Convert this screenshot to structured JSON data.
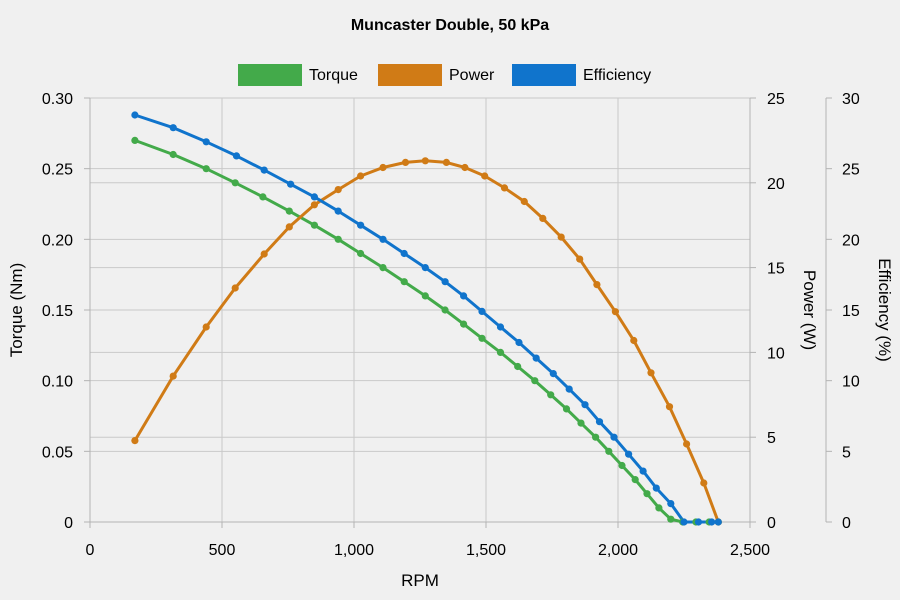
{
  "chart_data": {
    "type": "line",
    "title": "Muncaster Double, 50 kPa",
    "xlabel": "RPM",
    "xlim": [
      0,
      2500
    ],
    "x_ticks": [
      0,
      500,
      1000,
      1500,
      2000,
      2500
    ],
    "x_tick_labels": [
      "0",
      "500",
      "1,000",
      "1,500",
      "2,000",
      "2,500"
    ],
    "grid": true,
    "legend_position": "top-center",
    "axes": [
      {
        "id": "torque",
        "label": "Torque (Nm)",
        "side": "left",
        "range": [
          0,
          0.3
        ],
        "ticks": [
          0,
          0.05,
          0.1,
          0.15,
          0.2,
          0.25,
          0.3
        ],
        "tick_labels": [
          "0",
          "0.05",
          "0.10",
          "0.15",
          "0.20",
          "0.25",
          "0.30"
        ]
      },
      {
        "id": "power",
        "label": "Power (W)",
        "side": "right",
        "range": [
          0,
          25
        ],
        "ticks": [
          0,
          5,
          10,
          15,
          20,
          25
        ],
        "tick_labels": [
          "0",
          "5",
          "10",
          "15",
          "20",
          "25"
        ]
      },
      {
        "id": "efficiency",
        "label": "Efficiency (%)",
        "side": "right-outer",
        "range": [
          0,
          30
        ],
        "ticks": [
          0,
          5,
          10,
          15,
          20,
          25,
          30
        ],
        "tick_labels": [
          "0",
          "5",
          "10",
          "15",
          "20",
          "25",
          "30"
        ]
      }
    ],
    "series": [
      {
        "name": "Torque",
        "axis": "torque",
        "color": "#43aa4a",
        "x": [
          170,
          315,
          440,
          550,
          655,
          755,
          850,
          940,
          1025,
          1110,
          1190,
          1270,
          1345,
          1415,
          1485,
          1555,
          1620,
          1685,
          1745,
          1805,
          1860,
          1915,
          1965,
          2015,
          2065,
          2110,
          2155,
          2200,
          2245,
          2295,
          2345,
          2380
        ],
        "y": [
          0.27,
          0.26,
          0.25,
          0.24,
          0.23,
          0.22,
          0.21,
          0.2,
          0.19,
          0.18,
          0.17,
          0.16,
          0.15,
          0.14,
          0.13,
          0.12,
          0.11,
          0.1,
          0.09,
          0.08,
          0.07,
          0.06,
          0.05,
          0.04,
          0.03,
          0.02,
          0.01,
          0.002,
          0.0,
          0.0,
          0.0,
          0.0
        ]
      },
      {
        "name": "Power",
        "axis": "power",
        "color": "#d07b16",
        "x": [
          170,
          315,
          440,
          550,
          660,
          755,
          850,
          940,
          1025,
          1110,
          1195,
          1270,
          1350,
          1420,
          1495,
          1570,
          1645,
          1715,
          1785,
          1855,
          1920,
          1990,
          2060,
          2125,
          2195,
          2260,
          2325,
          2380
        ],
        "y": [
          4.8,
          8.6,
          11.5,
          13.8,
          15.8,
          17.4,
          18.7,
          19.6,
          20.4,
          20.9,
          21.2,
          21.3,
          21.2,
          20.9,
          20.4,
          19.7,
          18.9,
          17.9,
          16.8,
          15.5,
          14.0,
          12.4,
          10.7,
          8.8,
          6.8,
          4.6,
          2.3,
          0.0
        ]
      },
      {
        "name": "Efficiency",
        "axis": "efficiency",
        "color": "#1074cc",
        "x": [
          170,
          315,
          440,
          555,
          660,
          760,
          850,
          940,
          1025,
          1110,
          1190,
          1270,
          1345,
          1415,
          1485,
          1555,
          1625,
          1690,
          1755,
          1815,
          1875,
          1930,
          1985,
          2040,
          2095,
          2145,
          2200,
          2250,
          2305,
          2355,
          2380
        ],
        "y": [
          28.8,
          27.9,
          26.9,
          25.9,
          24.9,
          23.9,
          23.0,
          22.0,
          21.0,
          20.0,
          19.0,
          18.0,
          17.0,
          16.0,
          14.9,
          13.8,
          12.7,
          11.6,
          10.5,
          9.4,
          8.3,
          7.1,
          6.0,
          4.8,
          3.6,
          2.4,
          1.3,
          0.0,
          0.0,
          0.0,
          0.0
        ]
      }
    ]
  }
}
